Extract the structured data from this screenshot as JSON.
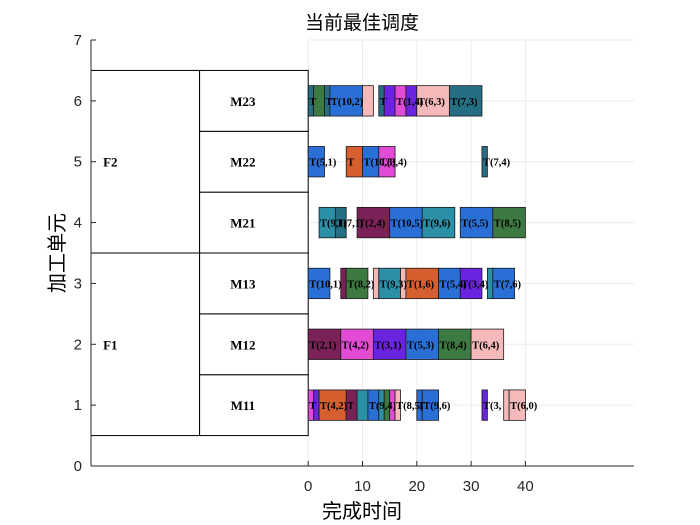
{
  "chart_data": {
    "type": "gantt",
    "title": "当前最佳调度",
    "xlabel": "完成时间",
    "ylabel": "加工单元",
    "xlim": [
      -40,
      60
    ],
    "ylim": [
      0,
      7
    ],
    "xticks": [
      0,
      10,
      20,
      30,
      40
    ],
    "yticks": [
      0,
      1,
      2,
      3,
      4,
      5,
      6,
      7
    ],
    "grid": true,
    "groups": [
      {
        "name": "F1",
        "machines": [
          "M11",
          "M12",
          "M13"
        ]
      },
      {
        "name": "F2",
        "machines": [
          "M21",
          "M22",
          "M23"
        ]
      }
    ],
    "machine_rows": [
      {
        "name": "M11",
        "y": 1
      },
      {
        "name": "M12",
        "y": 2
      },
      {
        "name": "M13",
        "y": 3
      },
      {
        "name": "M21",
        "y": 4
      },
      {
        "name": "M22",
        "y": 5
      },
      {
        "name": "M23",
        "y": 6
      }
    ],
    "palette": {
      "blue": "#2a6fd6",
      "orange": "#d65f2f",
      "purple": "#6a24e0",
      "green": "#3c7a41",
      "teal": "#2b8fa6",
      "maroon": "#7a2258",
      "pink": "#f6b9b9",
      "magenta": "#e14bd6",
      "navy": "#256e84"
    },
    "tasks": [
      {
        "row": 1,
        "start": 0,
        "end": 1,
        "label": "T",
        "color": "magenta"
      },
      {
        "row": 1,
        "start": 1,
        "end": 2,
        "label": "",
        "color": "purple"
      },
      {
        "row": 1,
        "start": 2,
        "end": 7,
        "label": "T(4,2)",
        "color": "orange"
      },
      {
        "row": 1,
        "start": 7,
        "end": 9,
        "label": "T",
        "color": "maroon"
      },
      {
        "row": 1,
        "start": 9,
        "end": 11,
        "label": "",
        "color": "teal"
      },
      {
        "row": 1,
        "start": 11,
        "end": 13,
        "label": "T(9,4)",
        "color": "blue"
      },
      {
        "row": 1,
        "start": 13,
        "end": 14,
        "label": "",
        "color": "teal"
      },
      {
        "row": 1,
        "start": 14,
        "end": 15,
        "label": "",
        "color": "green"
      },
      {
        "row": 1,
        "start": 15,
        "end": 16,
        "label": "",
        "color": "magenta"
      },
      {
        "row": 1,
        "start": 16,
        "end": 17,
        "label": "T(8,5)",
        "color": "pink"
      },
      {
        "row": 1,
        "start": 20,
        "end": 21,
        "label": "T",
        "color": "blue"
      },
      {
        "row": 1,
        "start": 21,
        "end": 24,
        "label": "T(9,6)",
        "color": "blue"
      },
      {
        "row": 1,
        "start": 32,
        "end": 33,
        "label": "T(3,",
        "color": "purple"
      },
      {
        "row": 1,
        "start": 36,
        "end": 37,
        "label": "",
        "color": "pink"
      },
      {
        "row": 1,
        "start": 37,
        "end": 40,
        "label": "T(6,0)",
        "color": "pink"
      },
      {
        "row": 2,
        "start": 0,
        "end": 6,
        "label": "T(2,1)",
        "color": "maroon"
      },
      {
        "row": 2,
        "start": 6,
        "end": 12,
        "label": "T(4,2)",
        "color": "magenta"
      },
      {
        "row": 2,
        "start": 12,
        "end": 18,
        "label": "T(3,1)",
        "color": "purple"
      },
      {
        "row": 2,
        "start": 18,
        "end": 24,
        "label": "T(5,3)",
        "color": "blue"
      },
      {
        "row": 2,
        "start": 24,
        "end": 30,
        "label": "T(8,4)",
        "color": "green"
      },
      {
        "row": 2,
        "start": 30,
        "end": 36,
        "label": "T(6,4)",
        "color": "pink"
      },
      {
        "row": 3,
        "start": 0,
        "end": 4,
        "label": "T(10,1)",
        "color": "blue"
      },
      {
        "row": 3,
        "start": 6,
        "end": 7,
        "label": "",
        "color": "maroon"
      },
      {
        "row": 3,
        "start": 7,
        "end": 11,
        "label": "T(8,2)",
        "color": "green"
      },
      {
        "row": 3,
        "start": 12,
        "end": 13,
        "label": "",
        "color": "pink"
      },
      {
        "row": 3,
        "start": 13,
        "end": 17,
        "label": "T(9,3)",
        "color": "teal"
      },
      {
        "row": 3,
        "start": 17,
        "end": 18,
        "label": "",
        "color": "pink"
      },
      {
        "row": 3,
        "start": 18,
        "end": 24,
        "label": "T(1,6)",
        "color": "orange"
      },
      {
        "row": 3,
        "start": 24,
        "end": 28,
        "label": "T(5,4)",
        "color": "blue"
      },
      {
        "row": 3,
        "start": 28,
        "end": 32,
        "label": "T(3,4)",
        "color": "purple"
      },
      {
        "row": 3,
        "start": 33,
        "end": 34,
        "label": "",
        "color": "teal"
      },
      {
        "row": 3,
        "start": 34,
        "end": 38,
        "label": "T(7,6)",
        "color": "blue"
      },
      {
        "row": 4,
        "start": 2,
        "end": 5,
        "label": "T(9,1)",
        "color": "teal"
      },
      {
        "row": 4,
        "start": 5,
        "end": 7,
        "label": "T(7,1)",
        "color": "navy"
      },
      {
        "row": 4,
        "start": 9,
        "end": 15,
        "label": "T(2,4)",
        "color": "maroon"
      },
      {
        "row": 4,
        "start": 15,
        "end": 21,
        "label": "T(10,5)",
        "color": "blue"
      },
      {
        "row": 4,
        "start": 21,
        "end": 27,
        "label": "T(9,6)",
        "color": "teal"
      },
      {
        "row": 4,
        "start": 28,
        "end": 34,
        "label": "T(5,5)",
        "color": "blue"
      },
      {
        "row": 4,
        "start": 34,
        "end": 40,
        "label": "T(8,5)",
        "color": "green"
      },
      {
        "row": 5,
        "start": 0,
        "end": 3,
        "label": "T(5,1)",
        "color": "blue"
      },
      {
        "row": 5,
        "start": 7,
        "end": 10,
        "label": "T",
        "color": "orange"
      },
      {
        "row": 5,
        "start": 10,
        "end": 13,
        "label": "T(10,3)",
        "color": "blue"
      },
      {
        "row": 5,
        "start": 13,
        "end": 16,
        "label": "T(3,4)",
        "color": "magenta"
      },
      {
        "row": 5,
        "start": 32,
        "end": 33,
        "label": "T(7,4)",
        "color": "navy"
      },
      {
        "row": 6,
        "start": 0,
        "end": 1,
        "label": "T",
        "color": "navy"
      },
      {
        "row": 6,
        "start": 1,
        "end": 3,
        "label": "",
        "color": "green"
      },
      {
        "row": 6,
        "start": 3,
        "end": 4,
        "label": "T",
        "color": "navy"
      },
      {
        "row": 6,
        "start": 4,
        "end": 10,
        "label": "T(10,2)",
        "color": "blue"
      },
      {
        "row": 6,
        "start": 10,
        "end": 12,
        "label": "",
        "color": "pink"
      },
      {
        "row": 6,
        "start": 13,
        "end": 14,
        "label": "T",
        "color": "navy"
      },
      {
        "row": 6,
        "start": 14,
        "end": 16,
        "label": "",
        "color": "purple"
      },
      {
        "row": 6,
        "start": 16,
        "end": 18,
        "label": "T(1,4)",
        "color": "magenta"
      },
      {
        "row": 6,
        "start": 18,
        "end": 20,
        "label": "",
        "color": "purple"
      },
      {
        "row": 6,
        "start": 20,
        "end": 26,
        "label": "T(6,3)",
        "color": "pink"
      },
      {
        "row": 6,
        "start": 26,
        "end": 32,
        "label": "T(7,3)",
        "color": "navy"
      }
    ]
  }
}
